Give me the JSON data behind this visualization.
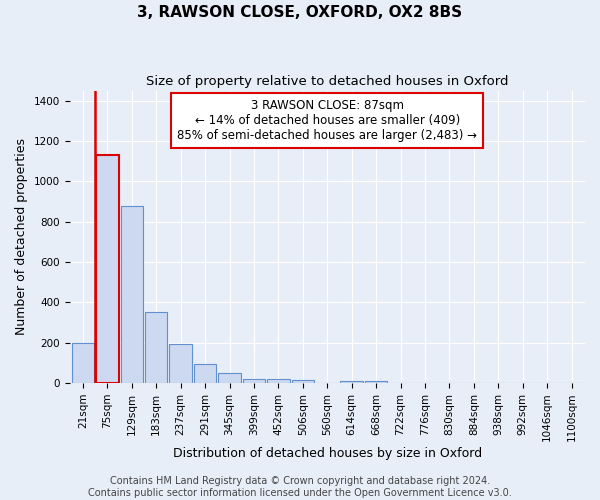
{
  "title": "3, RAWSON CLOSE, OXFORD, OX2 8BS",
  "subtitle": "Size of property relative to detached houses in Oxford",
  "xlabel": "Distribution of detached houses by size in Oxford",
  "ylabel": "Number of detached properties",
  "bin_labels": [
    "21sqm",
    "75sqm",
    "129sqm",
    "183sqm",
    "237sqm",
    "291sqm",
    "345sqm",
    "399sqm",
    "452sqm",
    "506sqm",
    "560sqm",
    "614sqm",
    "668sqm",
    "722sqm",
    "776sqm",
    "830sqm",
    "884sqm",
    "938sqm",
    "992sqm",
    "1046sqm",
    "1100sqm"
  ],
  "bar_heights": [
    197,
    1130,
    877,
    352,
    192,
    97,
    50,
    22,
    20,
    15,
    0,
    12,
    10,
    0,
    0,
    0,
    0,
    0,
    0,
    0,
    0
  ],
  "bar_color": "#ccd9f0",
  "bar_edge_color": "#6090d0",
  "highlight_bar_index": 1,
  "highlight_bar_edge_color": "#dd0000",
  "property_line_color": "#dd0000",
  "annotation_text": "3 RAWSON CLOSE: 87sqm\n← 14% of detached houses are smaller (409)\n85% of semi-detached houses are larger (2,483) →",
  "annotation_box_facecolor": "#ffffff",
  "annotation_box_edgecolor": "#dd0000",
  "ylim": [
    0,
    1450
  ],
  "yticks": [
    0,
    200,
    400,
    600,
    800,
    1000,
    1200,
    1400
  ],
  "bg_color": "#e8eef8",
  "grid_color": "#ffffff",
  "title_fontsize": 11,
  "subtitle_fontsize": 9.5,
  "axis_label_fontsize": 9,
  "tick_fontsize": 7.5,
  "annotation_fontsize": 8.5,
  "footer_fontsize": 7,
  "footer": "Contains HM Land Registry data © Crown copyright and database right 2024.\nContains public sector information licensed under the Open Government Licence v3.0."
}
